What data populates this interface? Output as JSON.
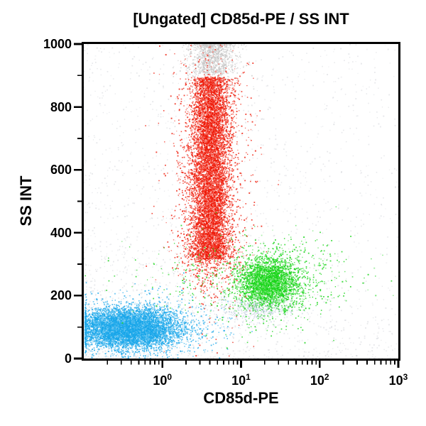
{
  "title": "[Ungated] CD85d-PE / SS INT",
  "chart_data": {
    "type": "scatter",
    "title": "[Ungated] CD85d-PE / SS INT",
    "xlabel": "CD85d-PE",
    "ylabel": "SS INT",
    "x_scale": "log",
    "x_log_range": [
      -1,
      3
    ],
    "x_ticks": [
      {
        "log10": 0,
        "base": "10",
        "exp": "0"
      },
      {
        "log10": 1,
        "base": "10",
        "exp": "1"
      },
      {
        "log10": 2,
        "base": "10",
        "exp": "2"
      },
      {
        "log10": 3,
        "base": "10",
        "exp": "3"
      }
    ],
    "y_range": [
      0,
      1000
    ],
    "y_ticks": [
      0,
      200,
      400,
      600,
      800,
      1000
    ],
    "y_minor_step": 100,
    "grid": false,
    "legend": "none",
    "populations": [
      {
        "name": "background-debris-gray",
        "color": "#c9cdd2",
        "alpha": 0.45,
        "count": 2300,
        "size": [
          1.2,
          2.0
        ],
        "x_center": 1.0,
        "ss_center": 120,
        "components": [
          {
            "w": 0.55,
            "x": {
              "dist": "pow",
              "min": -1,
              "max": 3,
              "pow": 1.5,
              "from": "bottom"
            },
            "y": {
              "dist": "pow",
              "min": 0,
              "max": 1000,
              "pow": 2.2,
              "from": "bottom"
            }
          },
          {
            "w": 0.3,
            "x": {
              "dist": "uniform",
              "min": -1,
              "max": 3
            },
            "y": {
              "dist": "uniform",
              "min": 0,
              "max": 1000
            }
          },
          {
            "w": 0.15,
            "x": {
              "dist": "normal",
              "mean": 0.0,
              "sd": 0.7
            },
            "y": {
              "dist": "normal",
              "mean": 150,
              "sd": 90
            }
          }
        ]
      },
      {
        "name": "offscale-high-pileup-gray",
        "color": "#c3c3c3",
        "alpha": 0.7,
        "count": 1100,
        "size": [
          1.2,
          1.9
        ],
        "x_center": 4.4,
        "ss_center": 960,
        "clamp_y_max": 1000,
        "components": [
          {
            "w": 0.8,
            "x": {
              "dist": "normal",
              "mean": 0.64,
              "sd": 0.14
            },
            "y": {
              "dist": "pow",
              "min": 905,
              "max": 1000,
              "pow": 1.6,
              "from": "top"
            }
          },
          {
            "w": 0.2,
            "x": {
              "dist": "normal",
              "mean": 0.64,
              "sd": 0.2
            },
            "y": {
              "dist": "normal",
              "mean": 905,
              "sd": 35
            }
          }
        ]
      },
      {
        "name": "granulocytes-red",
        "color": "#ee1402",
        "alpha": 0.78,
        "count": 9000,
        "size": [
          1.2,
          2.0
        ],
        "x_center": 4.2,
        "ss_center": 600,
        "ss_span": [
          300,
          915
        ],
        "components": [
          {
            "w": 0.8,
            "x": {
              "dist": "normal",
              "mean": 0.615,
              "sd": 0.125
            },
            "y": {
              "dist": "uniform",
              "min": 315,
              "max": 895
            }
          },
          {
            "w": 0.13,
            "x": {
              "dist": "normal",
              "mean": 0.615,
              "sd": 0.26
            },
            "y": {
              "dist": "normal",
              "mean": 600,
              "sd": 215
            }
          },
          {
            "w": 0.07,
            "x": {
              "dist": "normal",
              "mean": 0.615,
              "sd": 0.18
            },
            "y": {
              "dist": "normal",
              "mean": 330,
              "sd": 60
            }
          }
        ]
      },
      {
        "name": "lymphocytes-blue",
        "color": "#18a6ea",
        "alpha": 0.8,
        "count": 8000,
        "size": [
          1.2,
          2.0
        ],
        "x_center": 0.35,
        "ss_center": 95,
        "clamp_x_min": -0.985,
        "components": [
          {
            "w": 0.85,
            "x": {
              "dist": "normal",
              "mean": -0.45,
              "sd": 0.3
            },
            "y": {
              "dist": "normal",
              "mean": 95,
              "sd": 29
            }
          },
          {
            "w": 0.15,
            "x": {
              "dist": "normal",
              "mean": -0.22,
              "sd": 0.45
            },
            "y": {
              "dist": "normal",
              "mean": 100,
              "sd": 52
            }
          }
        ]
      },
      {
        "name": "monocytes-green",
        "color": "#15d415",
        "alpha": 0.8,
        "count": 3500,
        "size": [
          1.2,
          2.0
        ],
        "x_center": 22,
        "ss_center": 240,
        "components": [
          {
            "w": 0.74,
            "x": {
              "dist": "normal",
              "mean": 1.35,
              "sd": 0.18
            },
            "y": {
              "dist": "normal",
              "mean": 240,
              "sd": 38
            }
          },
          {
            "w": 0.2,
            "x": {
              "dist": "normal",
              "mean": 1.45,
              "sd": 0.42
            },
            "y": {
              "dist": "normal",
              "mean": 240,
              "sd": 75
            }
          },
          {
            "w": 0.06,
            "x": {
              "dist": "normal",
              "mean": 0.9,
              "sd": 0.8
            },
            "y": {
              "dist": "normal",
              "mean": 260,
              "sd": 60
            }
          }
        ]
      },
      {
        "name": "smear-grayblue",
        "color": "#aabdd4",
        "alpha": 0.5,
        "count": 420,
        "size": [
          1.2,
          1.8
        ],
        "x_center": 17,
        "ss_center": 158,
        "components": [
          {
            "w": 1.0,
            "x": {
              "dist": "normal",
              "mean": 1.2,
              "sd": 0.26
            },
            "y": {
              "dist": "normal",
              "mean": 158,
              "sd": 20
            }
          }
        ]
      }
    ]
  },
  "colors": {
    "axis": "#000000",
    "background": "#ffffff",
    "population_blue": "#18a6ea",
    "population_red": "#ee1402",
    "population_green": "#15d415",
    "ungated_gray": "#c3c3c3"
  }
}
